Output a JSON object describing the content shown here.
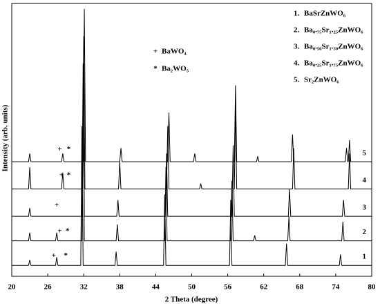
{
  "chart_data": {
    "type": "line",
    "xlabel": "2 Theta (degree)",
    "ylabel": "Intensity (arb. units)",
    "xlim": [
      20,
      80
    ],
    "xticks": [
      20,
      26,
      32,
      38,
      44,
      50,
      56,
      62,
      68,
      74,
      80
    ],
    "ylim": [
      0,
      100
    ],
    "legend": "upper right",
    "series": [
      {
        "name": "BaSrZnWO₆",
        "key": "1.",
        "label": "1",
        "color": "#000000",
        "x": [
          20,
          22.8,
          23,
          23.2,
          27.3,
          27.5,
          27.7,
          31.5,
          31.7,
          31.9,
          37.2,
          37.4,
          37.6,
          45.3,
          45.5,
          45.7,
          56.3,
          56.5,
          56.7,
          65.6,
          65.8,
          66,
          74.6,
          74.8,
          75,
          80
        ],
        "values": [
          4,
          4,
          6,
          4,
          4,
          7,
          4,
          4,
          55,
          4,
          4,
          9,
          4,
          4,
          30,
          4,
          4,
          28,
          4,
          4,
          12,
          4,
          4,
          8,
          4,
          4
        ]
      },
      {
        "name": "Ba₀.₇₅Sr₁.₂₅ZnWO₆",
        "key": "2.",
        "label": "2",
        "color": "#000000",
        "x": [
          20,
          22.8,
          23,
          23.2,
          27.3,
          27.5,
          27.7,
          31.7,
          31.9,
          32.1,
          37.4,
          37.6,
          37.8,
          45.5,
          45.7,
          45.9,
          56.5,
          56.7,
          56.9,
          60.3,
          60.5,
          60.7,
          66,
          66.2,
          66.4,
          75,
          75.2,
          75.4,
          80
        ],
        "values": [
          13,
          13,
          16,
          13,
          13,
          16,
          13,
          13,
          70,
          13,
          13,
          19,
          13,
          13,
          40,
          13,
          13,
          35,
          13,
          13,
          15,
          13,
          13,
          22,
          13,
          13,
          20,
          13,
          13
        ]
      },
      {
        "name": "Ba₀.₅₀Sr₁.₅₀ZnWO₆",
        "key": "3.",
        "label": "3",
        "color": "#000000",
        "x": [
          20,
          22.8,
          23,
          23.2,
          31.7,
          31.9,
          32.1,
          37.5,
          37.7,
          37.9,
          45.6,
          45.8,
          46,
          56.7,
          56.9,
          57.1,
          66.1,
          66.3,
          66.5,
          75.1,
          75.3,
          75.5,
          80
        ],
        "values": [
          22,
          22,
          25,
          22,
          22,
          78,
          22,
          22,
          28,
          22,
          22,
          45,
          22,
          22,
          48,
          22,
          22,
          32,
          22,
          22,
          28,
          22,
          22
        ]
      },
      {
        "name": "Ba₀.₂₅Sr₁.₇₅ZnWO₆",
        "key": "4.",
        "label": "4",
        "color": "#000000",
        "x": [
          20,
          22.8,
          23,
          23.2,
          28.3,
          28.5,
          28.7,
          31.8,
          32,
          32.2,
          37.8,
          38,
          38.2,
          45.8,
          46,
          46.2,
          51.3,
          51.5,
          51.7,
          57.1,
          57.3,
          57.5,
          66.8,
          67,
          67.2,
          76.1,
          76.3,
          76.5,
          80
        ],
        "values": [
          32,
          32,
          40,
          32,
          32,
          38,
          32,
          32,
          88,
          32,
          32,
          42,
          32,
          32,
          55,
          32,
          32,
          34,
          32,
          32,
          62,
          32,
          32,
          47,
          32,
          32,
          45,
          32,
          32
        ]
      },
      {
        "name": "Sr₂ZnWO₆",
        "key": "5.",
        "label": "5",
        "color": "#000000",
        "x": [
          20,
          22.8,
          23,
          23.2,
          28.3,
          28.5,
          28.7,
          31.9,
          32.1,
          32.3,
          38,
          38.2,
          38.4,
          46,
          46.2,
          46.4,
          50.3,
          50.5,
          50.7,
          57.1,
          57.3,
          57.5,
          60.8,
          61,
          61.2,
          66.6,
          66.8,
          67,
          75.6,
          75.8,
          76,
          76.1,
          76.3,
          76.5,
          80
        ],
        "values": [
          42,
          42,
          45,
          42,
          42,
          45,
          42,
          42,
          98,
          42,
          42,
          47,
          42,
          42,
          60,
          42,
          42,
          45,
          42,
          42,
          70,
          42,
          42,
          44,
          42,
          42,
          52,
          42,
          42,
          47,
          42,
          42,
          50,
          42,
          42
        ]
      }
    ],
    "phases": [
      {
        "symbol": "+",
        "name": "BaWO₄"
      },
      {
        "symbol": "*",
        "name": "Ba₂WO₅"
      }
    ],
    "markers": [
      {
        "text": "+",
        "x": 27,
        "y": 7.5
      },
      {
        "text": "*",
        "x": 29,
        "y": 7.5
      },
      {
        "text": "+",
        "x": 28,
        "y": 16.5
      },
      {
        "text": "*",
        "x": 29.3,
        "y": 16.5
      },
      {
        "text": "+",
        "x": 27.5,
        "y": 26
      },
      {
        "text": "+",
        "x": 28.3,
        "y": 37
      },
      {
        "text": "*",
        "x": 29.5,
        "y": 37
      },
      {
        "text": "+",
        "x": 28,
        "y": 46.5
      },
      {
        "text": "*",
        "x": 29.5,
        "y": 46.5
      }
    ]
  }
}
